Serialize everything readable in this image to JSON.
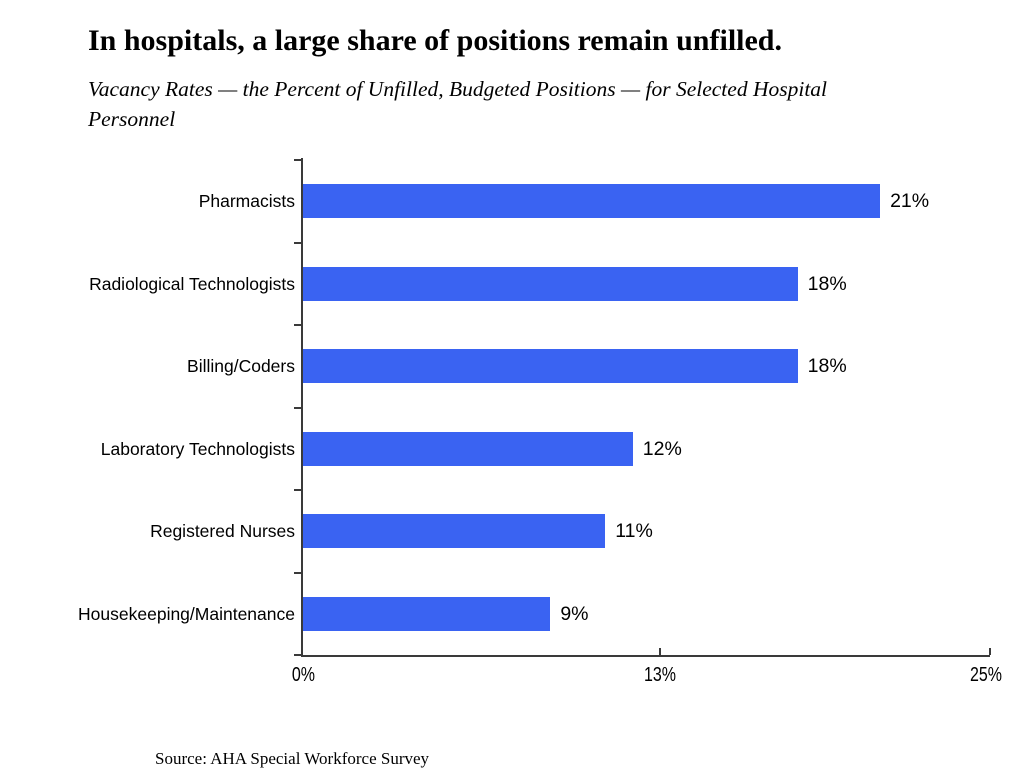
{
  "slide": {
    "title": "In hospitals, a large share of positions remain unfilled.",
    "subtitle": "Vacancy Rates — the Percent of Unfilled, Budgeted Positions — for Selected Hospital Personnel",
    "source": "Source: AHA Special Workforce Survey"
  },
  "chart_data": {
    "type": "bar",
    "orientation": "horizontal",
    "title": "In hospitals, a large share of positions remain unfilled.",
    "subtitle": "Vacancy Rates — the Percent of Unfilled, Budgeted Positions — for Selected Hospital Personnel",
    "categories": [
      "Pharmacists",
      "Radiological Technologists",
      "Billing/Coders",
      "Laboratory Technologists",
      "Registered Nurses",
      "Housekeeping/Maintenance"
    ],
    "values": [
      21,
      18,
      18,
      12,
      11,
      9
    ],
    "value_labels": [
      "21%",
      "18%",
      "18%",
      "12%",
      "11%",
      "9%"
    ],
    "xlabel": "",
    "ylabel": "",
    "xlim": [
      0,
      25
    ],
    "x_ticks": [
      {
        "value": 0,
        "label": "0%"
      },
      {
        "value": 13,
        "label": "13%"
      },
      {
        "value": 25,
        "label": "25%"
      }
    ],
    "grid": false,
    "legend": "none",
    "bar_color": "#3A63F2",
    "axis_color": "#3a3a3a",
    "source": "Source: AHA Special Workforce Survey"
  }
}
